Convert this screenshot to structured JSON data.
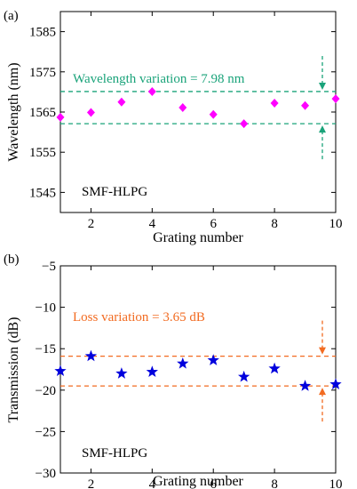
{
  "chart_data": [
    {
      "panel": "(a)",
      "type": "scatter",
      "xlabel": "Grating number",
      "ylabel": "Wavelength (nm)",
      "xlim": [
        1,
        10
      ],
      "ylim": [
        1540,
        1590
      ],
      "xticks": [
        2,
        4,
        6,
        8,
        10
      ],
      "yticks": [
        1545,
        1555,
        1565,
        1575,
        1585
      ],
      "x": [
        1,
        2,
        3,
        4,
        5,
        6,
        7,
        8,
        9,
        10
      ],
      "y": [
        1563.7,
        1564.9,
        1567.5,
        1570.1,
        1566.1,
        1564.4,
        1562.1,
        1567.2,
        1566.6,
        1568.3
      ],
      "marker": "diamond",
      "marker_color": "#ff00ff",
      "bounds": [
        1562.1,
        1570.1
      ],
      "bound_color": "#1aa37a",
      "annotation": "Wavelength variation = 7.98 nm",
      "annotation_color": "#1aa37a",
      "label": "SMF-HLPG",
      "grid": false
    },
    {
      "panel": "(b)",
      "type": "scatter",
      "xlabel": "Grating number",
      "ylabel": "Transmission (dB)",
      "xlim": [
        1,
        10
      ],
      "ylim": [
        -30,
        -5
      ],
      "xticks": [
        2,
        4,
        6,
        8,
        10
      ],
      "yticks": [
        -30,
        -25,
        -20,
        -15,
        -10,
        -5
      ],
      "x": [
        1,
        2,
        3,
        4,
        5,
        6,
        7,
        8,
        9,
        10
      ],
      "y": [
        -17.7,
        -15.9,
        -18.0,
        -17.8,
        -16.8,
        -16.4,
        -18.4,
        -17.4,
        -19.5,
        -19.3
      ],
      "marker": "star",
      "marker_color": "#0000dd",
      "bounds": [
        -15.9,
        -19.5
      ],
      "bound_color": "#f26b21",
      "annotation": "Loss variation = 3.65 dB",
      "annotation_color": "#f26b21",
      "label": "SMF-HLPG",
      "grid": false
    }
  ]
}
